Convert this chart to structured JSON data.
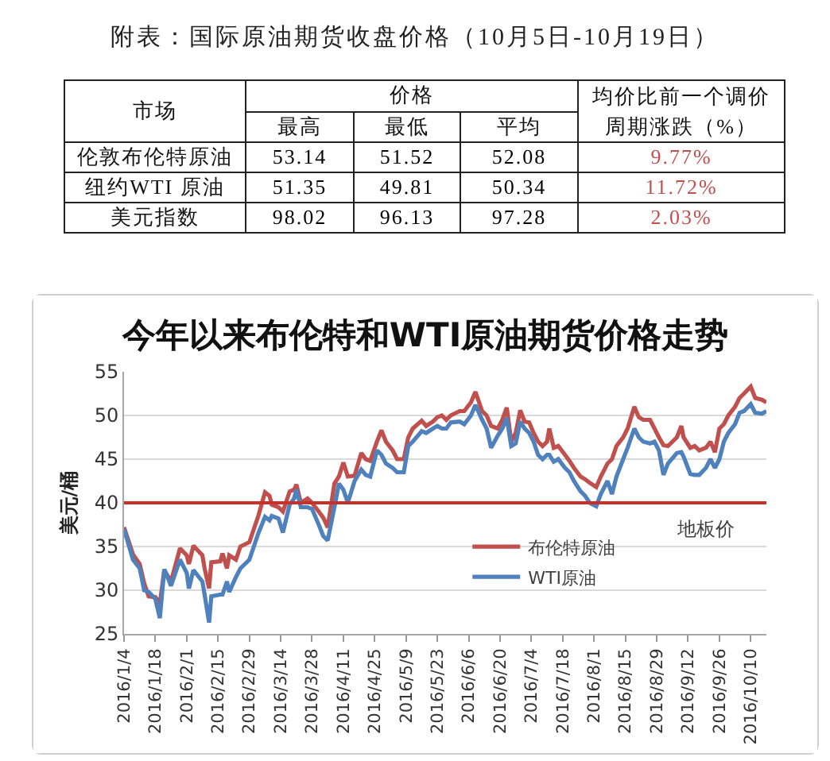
{
  "chart_data": [
    {
      "type": "other",
      "title": "附表：国际原油期货收盘价格（10月5日-10月19日）",
      "ylabel": "市场",
      "xlabel": "价格",
      "categories": [
        "最高",
        "最低",
        "平均",
        "均价比前一个调价周期涨跌（%）"
      ],
      "y_categories": [
        "伦敦布伦特原油",
        "纽约WTI 原油",
        "美元指数"
      ],
      "cell_labels": [
        [
          "53.14",
          "51.52",
          "52.08",
          "9.77%"
        ],
        [
          "51.35",
          "49.81",
          "50.34",
          "11.72%"
        ],
        [
          "98.02",
          "96.13",
          "97.28",
          "2.03%"
        ]
      ],
      "colors": [
        "#000000",
        "#000000",
        "#000000",
        "#c0504d"
      ]
    },
    {
      "type": "line",
      "title": "今年以来布伦特和WTI原油期货价格走势",
      "ylabel": "美元/桶",
      "x": [
        "2016-01-04",
        "2016-01-08",
        "2016-01-11",
        "2016-01-13",
        "2016-01-15",
        "2016-01-18",
        "2016-01-20",
        "2016-01-22",
        "2016-01-25",
        "2016-01-29",
        "2016-02-01",
        "2016-02-02",
        "2016-02-04",
        "2016-02-08",
        "2016-02-09",
        "2016-02-11",
        "2016-02-12",
        "2016-02-16",
        "2016-02-17",
        "2016-02-19",
        "2016-02-20",
        "2016-02-23",
        "2016-02-25",
        "2016-02-29",
        "2016-03-02",
        "2016-03-04",
        "2016-03-07",
        "2016-03-09",
        "2016-03-10",
        "2016-03-13",
        "2016-03-15",
        "2016-03-18",
        "2016-03-20",
        "2016-03-21",
        "2016-03-23",
        "2016-03-26",
        "2016-03-28",
        "2016-03-31",
        "2016-04-02",
        "2016-04-04",
        "2016-04-07",
        "2016-04-09",
        "2016-04-11",
        "2016-04-13",
        "2016-04-16",
        "2016-04-19",
        "2016-04-21",
        "2016-04-23",
        "2016-04-26",
        "2016-04-28",
        "2016-04-30",
        "2016-05-03",
        "2016-05-05",
        "2016-05-08",
        "2016-05-10",
        "2016-05-12",
        "2016-05-16",
        "2016-05-18",
        "2016-05-21",
        "2016-05-23",
        "2016-05-25",
        "2016-05-27",
        "2016-05-29",
        "2016-06-02",
        "2016-06-04",
        "2016-06-07",
        "2016-06-09",
        "2016-06-12",
        "2016-06-14",
        "2016-06-16",
        "2016-06-19",
        "2016-06-21",
        "2016-06-23",
        "2016-06-25",
        "2016-06-27",
        "2016-06-29",
        "2016-07-01",
        "2016-07-03",
        "2016-07-05",
        "2016-07-07",
        "2016-07-09",
        "2016-07-11",
        "2016-07-12",
        "2016-07-14",
        "2016-07-16",
        "2016-07-19",
        "2016-07-21",
        "2016-07-23",
        "2016-07-26",
        "2016-07-28",
        "2016-07-30",
        "2016-08-02",
        "2016-08-04",
        "2016-08-07",
        "2016-08-09",
        "2016-08-11",
        "2016-08-14",
        "2016-08-16",
        "2016-08-19",
        "2016-08-21",
        "2016-08-23",
        "2016-08-26",
        "2016-08-28",
        "2016-08-30",
        "2016-09-01",
        "2016-09-03",
        "2016-09-07",
        "2016-09-09",
        "2016-09-10",
        "2016-09-13",
        "2016-09-15",
        "2016-09-17",
        "2016-09-20",
        "2016-09-22",
        "2016-09-24",
        "2016-09-26",
        "2016-09-28",
        "2016-09-30",
        "2016-10-03",
        "2016-10-05",
        "2016-10-07",
        "2016-10-10",
        "2016-10-12",
        "2016-10-15",
        "2016-10-17"
      ],
      "series": [
        {
          "name": "布伦特原油",
          "color": "#c0504d",
          "values": [
            37.2,
            34.1,
            33.0,
            30.8,
            29.3,
            29.2,
            28.5,
            32.3,
            31.0,
            34.8,
            34.0,
            33.0,
            35.1,
            34.0,
            32.5,
            30.2,
            33.2,
            33.3,
            34.2,
            32.5,
            34.0,
            33.5,
            35.0,
            35.5,
            37.0,
            38.5,
            41.2,
            40.8,
            39.8,
            39.5,
            39.0,
            41.3,
            41.5,
            42.1,
            40.0,
            40.5,
            40.0,
            39.0,
            38.3,
            37.2,
            42.2,
            43.0,
            44.6,
            43.0,
            43.1,
            45.7,
            45.0,
            44.8,
            47.0,
            48.3,
            47.0,
            46.0,
            45.0,
            45.0,
            47.5,
            48.5,
            49.4,
            48.8,
            49.3,
            49.8,
            50.0,
            49.5,
            50.0,
            50.5,
            50.5,
            51.5,
            52.7,
            50.5,
            50.0,
            48.8,
            48.5,
            49.5,
            50.9,
            47.0,
            48.0,
            50.6,
            49.3,
            49.2,
            48.0,
            47.0,
            46.5,
            47.0,
            48.5,
            46.3,
            46.5,
            45.5,
            44.8,
            44.0,
            43.0,
            42.7,
            42.3,
            41.8,
            43.0,
            44.5,
            45.0,
            46.5,
            47.5,
            48.5,
            51.0,
            49.8,
            49.5,
            49.5,
            48.5,
            47.5,
            46.6,
            46.5,
            47.5,
            48.8,
            47.5,
            46.3,
            46.5,
            46.0,
            46.3,
            47.0,
            45.8,
            48.5,
            49.0,
            50.0,
            51.0,
            52.0,
            52.5,
            53.3,
            52.0,
            51.8,
            51.5
          ]
        },
        {
          "name": "WTI原油",
          "color": "#4f81bd",
          "values": [
            37.0,
            33.5,
            32.5,
            30.0,
            29.8,
            29.0,
            26.8,
            32.4,
            30.5,
            33.5,
            32.0,
            30.2,
            32.3,
            31.0,
            29.5,
            26.3,
            29.3,
            29.5,
            29.5,
            31.0,
            29.8,
            31.5,
            32.5,
            33.5,
            35.0,
            36.5,
            38.4,
            38.0,
            38.5,
            38.2,
            36.6,
            39.8,
            40.5,
            41.5,
            39.5,
            39.5,
            39.3,
            37.5,
            36.2,
            35.7,
            39.5,
            42.2,
            41.5,
            40.0,
            42.5,
            43.8,
            43.2,
            43.0,
            46.0,
            45.5,
            44.5,
            44.0,
            43.5,
            43.5,
            46.5,
            47.0,
            48.2,
            48.0,
            48.5,
            48.8,
            48.5,
            48.5,
            49.2,
            49.3,
            49.0,
            50.0,
            51.2,
            49.5,
            48.5,
            46.3,
            47.7,
            48.5,
            49.7,
            46.5,
            46.8,
            49.3,
            48.5,
            48.0,
            47.0,
            45.5,
            45.0,
            45.5,
            45.5,
            44.7,
            45.0,
            44.0,
            43.5,
            42.5,
            41.3,
            40.8,
            40.0,
            39.6,
            41.0,
            42.5,
            41.0,
            43.0,
            45.0,
            46.3,
            48.5,
            47.5,
            47.0,
            46.8,
            47.0,
            46.0,
            43.2,
            44.5,
            45.7,
            45.8,
            45.3,
            43.3,
            43.2,
            43.2,
            44.0,
            45.0,
            44.0,
            45.0,
            47.0,
            48.0,
            49.0,
            50.3,
            50.5,
            51.3,
            50.3,
            50.2,
            50.5
          ]
        }
      ],
      "xlim": [
        "2016-01-04",
        "2016-10-17"
      ],
      "xticks": [
        {
          "value": "2016-01-04",
          "label": "2016/1/4"
        },
        {
          "value": "2016-01-18",
          "label": "2016/1/18"
        },
        {
          "value": "2016-02-01",
          "label": "2016/2/1"
        },
        {
          "value": "2016-02-15",
          "label": "2016/2/15"
        },
        {
          "value": "2016-02-29",
          "label": "2016/2/29"
        },
        {
          "value": "2016-03-14",
          "label": "2016/3/14"
        },
        {
          "value": "2016-03-28",
          "label": "2016/3/28"
        },
        {
          "value": "2016-04-11",
          "label": "2016/4/11"
        },
        {
          "value": "2016-04-25",
          "label": "2016/4/25"
        },
        {
          "value": "2016-05-09",
          "label": "2016/5/9"
        },
        {
          "value": "2016-05-23",
          "label": "2016/5/23"
        },
        {
          "value": "2016-06-06",
          "label": "2016/6/6"
        },
        {
          "value": "2016-06-20",
          "label": "2016/6/20"
        },
        {
          "value": "2016-07-04",
          "label": "2016/7/4"
        },
        {
          "value": "2016-07-18",
          "label": "2016/7/18"
        },
        {
          "value": "2016-08-01",
          "label": "2016/8/1"
        },
        {
          "value": "2016-08-15",
          "label": "2016/8/15"
        },
        {
          "value": "2016-08-29",
          "label": "2016/8/29"
        },
        {
          "value": "2016-09-12",
          "label": "2016/9/12"
        },
        {
          "value": "2016-09-26",
          "label": "2016/9/26"
        },
        {
          "value": "2016-10-10",
          "label": "2016/10/10"
        }
      ],
      "ylim": [
        25,
        55
      ],
      "yticks": [
        25,
        30,
        35,
        40,
        45,
        50,
        55
      ],
      "grid": "y",
      "legend": "bottom right",
      "line_style": "solid",
      "ref_lines": [
        {
          "axis": "y",
          "value": 40,
          "label": "地板价",
          "color": "#c8302c"
        }
      ]
    }
  ]
}
